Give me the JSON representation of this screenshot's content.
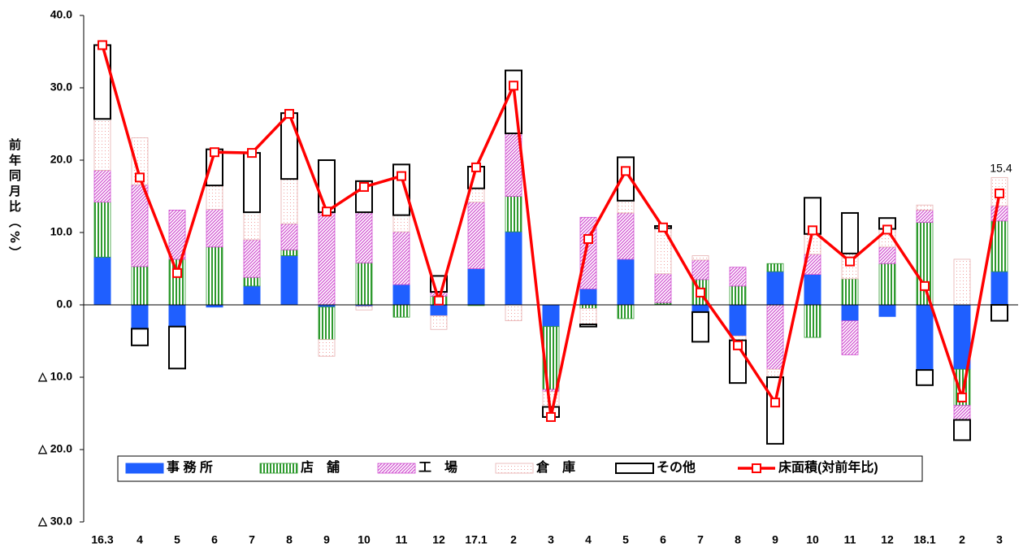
{
  "chart_data": {
    "type": "bar",
    "stacked": true,
    "y_label": "前年同月比（%）",
    "categories": [
      "16.3",
      "4",
      "5",
      "6",
      "7",
      "8",
      "9",
      "10",
      "11",
      "12",
      "17.1",
      "2",
      "3",
      "4",
      "5",
      "6",
      "7",
      "8",
      "9",
      "10",
      "11",
      "12",
      "18.1",
      "2",
      "3"
    ],
    "ylim": [
      -30,
      40
    ],
    "yticks": [
      {
        "value": 40,
        "label": "40.0"
      },
      {
        "value": 30,
        "label": "30.0"
      },
      {
        "value": 20,
        "label": "20.0"
      },
      {
        "value": 10,
        "label": "10.0"
      },
      {
        "value": 0,
        "label": "0.0"
      },
      {
        "value": -10,
        "label": "△ 10.0"
      },
      {
        "value": -20,
        "label": "△ 20.0"
      },
      {
        "value": -30,
        "label": "△ 30.0"
      }
    ],
    "legend": "bottom",
    "series": [
      {
        "name": "事 務 所",
        "type": "bar",
        "pattern": "solid",
        "color": "#1f5fff",
        "values": [
          6.6,
          -3.3,
          -3.0,
          -0.3,
          2.6,
          6.8,
          -0.3,
          -0.2,
          2.8,
          -1.5,
          5.0,
          10.1,
          -3.0,
          2.2,
          6.3,
          0.1,
          -1.0,
          -4.3,
          4.6,
          4.2,
          -2.2,
          -1.6,
          -9.0,
          -8.9,
          4.6
        ]
      },
      {
        "name": "店　舗",
        "type": "bar",
        "pattern": "vstripe",
        "color": "#2e9a2e",
        "values": [
          7.6,
          5.3,
          6.3,
          8.0,
          1.2,
          0.8,
          -4.5,
          5.8,
          -1.7,
          1.2,
          -0.1,
          4.9,
          -8.7,
          -0.5,
          -1.9,
          0.2,
          3.5,
          2.6,
          1.1,
          -4.5,
          3.6,
          5.7,
          11.4,
          -5.0,
          7.0
        ]
      },
      {
        "name": "工　場",
        "type": "bar",
        "pattern": "diag",
        "color": "#d04fd0",
        "values": [
          4.4,
          11.3,
          6.8,
          5.2,
          5.2,
          3.6,
          12.8,
          7.0,
          7.3,
          0.6,
          9.2,
          8.7,
          -0.3,
          9.9,
          6.4,
          4.0,
          2.7,
          2.6,
          -8.9,
          2.8,
          -4.7,
          2.3,
          1.7,
          -2.0,
          2.1
        ]
      },
      {
        "name": "倉　庫",
        "type": "bar",
        "pattern": "dots",
        "color": "#f0a0a0",
        "values": [
          7.1,
          6.5,
          0.0,
          3.3,
          3.8,
          6.2,
          -2.3,
          -0.5,
          2.3,
          -1.9,
          1.9,
          -2.2,
          -2.1,
          -2.2,
          1.7,
          6.3,
          0.6,
          -0.6,
          -1.1,
          2.8,
          3.5,
          2.5,
          0.7,
          6.3,
          3.9
        ]
      },
      {
        "name": "その他",
        "type": "bar",
        "pattern": "outline",
        "color": "#000000",
        "values": [
          10.2,
          -2.3,
          -5.8,
          5.0,
          8.2,
          9.1,
          7.2,
          4.3,
          7.0,
          2.2,
          3.0,
          8.7,
          -1.4,
          -0.3,
          6.0,
          0.3,
          -4.1,
          -5.9,
          -9.2,
          5.0,
          5.6,
          1.5,
          -2.1,
          -2.8,
          -2.2
        ]
      },
      {
        "name": "床面積(対前年比)",
        "type": "line",
        "color": "#ff0000",
        "values": [
          35.9,
          17.6,
          4.4,
          21.1,
          21.0,
          26.4,
          12.9,
          16.3,
          17.8,
          0.6,
          19.0,
          30.3,
          -15.5,
          9.1,
          18.5,
          10.7,
          1.7,
          -5.6,
          -13.5,
          10.3,
          6.0,
          10.4,
          2.6,
          -12.8,
          15.4
        ],
        "value_labels": [
          null,
          null,
          null,
          null,
          null,
          null,
          null,
          null,
          null,
          null,
          null,
          null,
          null,
          null,
          null,
          null,
          null,
          null,
          null,
          null,
          null,
          null,
          null,
          null,
          "15.4"
        ]
      }
    ]
  }
}
